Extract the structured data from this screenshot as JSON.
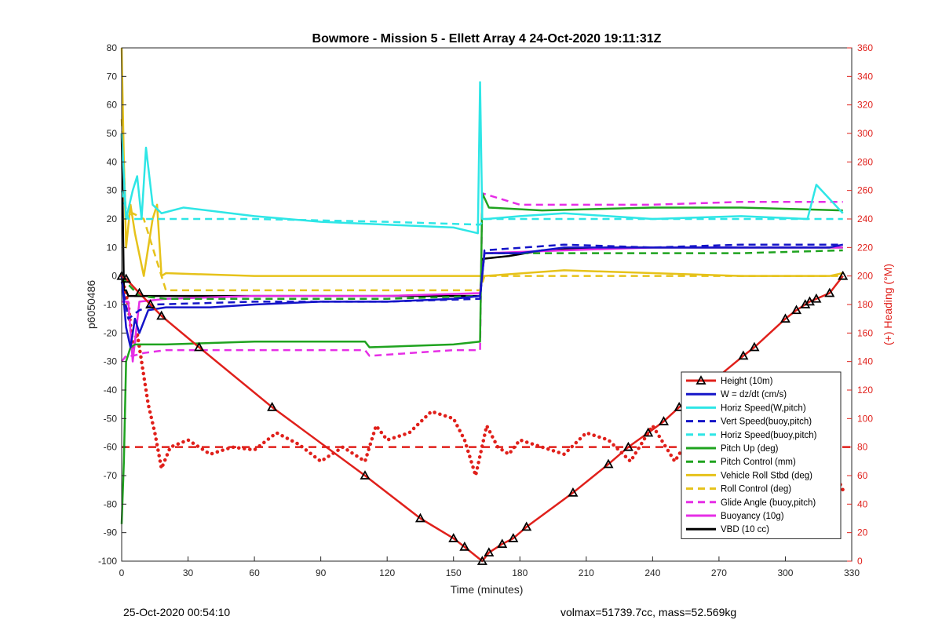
{
  "chart_data": {
    "type": "line",
    "title": "Bowmore - Mission 5 - Ellett Array 4 24-Oct-2020 19:11:31Z",
    "xlabel": "Time (minutes)",
    "ylabel": "p6050486",
    "y2label": "(+) Heading (°M)",
    "xlim": [
      0,
      330
    ],
    "ylim": [
      -100,
      80
    ],
    "y2lim": [
      0,
      360
    ],
    "xticks": [
      "0",
      "30",
      "60",
      "90",
      "120",
      "150",
      "180",
      "210",
      "240",
      "270",
      "300",
      "330"
    ],
    "yticks": [
      "-100",
      "-90",
      "-80",
      "-70",
      "-60",
      "-50",
      "-40",
      "-30",
      "-20",
      "-10",
      "0",
      "10",
      "20",
      "30",
      "40",
      "50",
      "60",
      "70",
      "80"
    ],
    "y2ticks": [
      "0",
      "20",
      "40",
      "60",
      "80",
      "100",
      "120",
      "140",
      "160",
      "180",
      "200",
      "220",
      "240",
      "260",
      "280",
      "300",
      "320",
      "340",
      "360"
    ],
    "grid": false,
    "legend_position": "bottom-right",
    "colors": {
      "red": "#e0201b",
      "blue": "#1414c8",
      "cyan": "#2ee6e6",
      "green": "#1fa31f",
      "yellow": "#e6c21a",
      "magenta": "#e62ee6",
      "black": "#000000"
    },
    "series": [
      {
        "name": "Height (10m)",
        "color": "#e0201b",
        "style": "solid",
        "marker": "triangle",
        "x": [
          0,
          2,
          8,
          13,
          18,
          35,
          68,
          110,
          135,
          150,
          155,
          163,
          166,
          172,
          177,
          183,
          204,
          220,
          229,
          238,
          245,
          252,
          260,
          267,
          281,
          286,
          300,
          305,
          309,
          311,
          314,
          320,
          326
        ],
        "y": [
          0,
          -1,
          -6,
          -10,
          -14,
          -25,
          -46,
          -70,
          -85,
          -92,
          -95,
          -100,
          -97,
          -94,
          -92,
          -88,
          -76,
          -66,
          -60,
          -55,
          -51,
          -46,
          -41,
          -37,
          -28,
          -25,
          -15,
          -12,
          -10,
          -9,
          -8,
          -6,
          0
        ]
      },
      {
        "name": "W = dz/dt (cm/s)",
        "color": "#1414c8",
        "style": "solid",
        "x": [
          0,
          2,
          4,
          6,
          8,
          12,
          20,
          40,
          60,
          90,
          120,
          150,
          162,
          164,
          180,
          200,
          240,
          280,
          320,
          326
        ],
        "y": [
          0,
          -18,
          -25,
          -15,
          -20,
          -12,
          -11,
          -11,
          -10,
          -9,
          -9,
          -8,
          -7,
          8,
          8,
          10,
          10,
          10,
          10,
          11
        ]
      },
      {
        "name": "Horiz Speed(W,pitch)",
        "color": "#2ee6e6",
        "style": "solid",
        "x": [
          0,
          2,
          5,
          7,
          9,
          11,
          14,
          18,
          28,
          60,
          90,
          120,
          150,
          161,
          162,
          163,
          165,
          180,
          200,
          240,
          280,
          310,
          314,
          326
        ],
        "y": [
          50,
          20,
          30,
          35,
          20,
          45,
          25,
          22,
          24,
          21,
          19,
          18,
          17,
          15,
          68,
          20,
          20,
          21,
          22,
          20,
          21,
          20,
          32,
          22
        ]
      },
      {
        "name": "Vert Speed(buoy,pitch)",
        "color": "#1414c8",
        "style": "dashed",
        "x": [
          0,
          3,
          8,
          15,
          60,
          120,
          162,
          164,
          200,
          240,
          280,
          326
        ],
        "y": [
          -2,
          -15,
          -12,
          -10,
          -9,
          -9,
          -8,
          9,
          11,
          10,
          11,
          11
        ]
      },
      {
        "name": "Horiz Speed(buoy,pitch)",
        "color": "#2ee6e6",
        "style": "dashed",
        "x": [
          0,
          3,
          10,
          20,
          60,
          120,
          162,
          164,
          200,
          240,
          280,
          326
        ],
        "y": [
          30,
          20,
          20,
          20,
          20,
          19,
          18,
          20,
          20,
          20,
          20,
          20
        ]
      },
      {
        "name": "Pitch Up (deg)",
        "color": "#1fa31f",
        "style": "solid",
        "x": [
          0,
          1,
          2,
          4,
          6,
          10,
          20,
          60,
          110,
          112,
          150,
          162,
          163,
          166,
          190,
          240,
          280,
          326
        ],
        "y": [
          -87,
          -65,
          -30,
          -25,
          -24,
          -24,
          -24,
          -23,
          -23,
          -25,
          -24,
          -23,
          29,
          24,
          23,
          24,
          24,
          23
        ]
      },
      {
        "name": "Pitch Control (mm)",
        "color": "#1fa31f",
        "style": "dashed",
        "x": [
          0,
          3,
          8,
          20,
          60,
          120,
          162,
          164,
          200,
          240,
          280,
          326
        ],
        "y": [
          0,
          -3,
          -7,
          -8,
          -8,
          -8,
          -7,
          8,
          8,
          8,
          8,
          9
        ]
      },
      {
        "name": "Vehicle Roll Stbd (deg)",
        "color": "#e6c21a",
        "style": "solid",
        "x": [
          0,
          1,
          2,
          4,
          6,
          10,
          14,
          16,
          18,
          20,
          60,
          120,
          160,
          162,
          164,
          200,
          240,
          280,
          320,
          326
        ],
        "y": [
          80,
          40,
          10,
          25,
          15,
          0,
          20,
          25,
          0,
          1,
          0,
          0,
          0,
          0,
          0,
          2,
          1,
          0,
          0,
          1
        ]
      },
      {
        "name": "Roll Control (deg)",
        "color": "#e6c21a",
        "style": "dashed",
        "x": [
          0,
          2,
          5,
          10,
          20,
          60,
          120,
          162,
          164,
          200,
          240,
          280,
          326
        ],
        "y": [
          55,
          20,
          22,
          20,
          -5,
          -5,
          -5,
          -5,
          0,
          0,
          0,
          0,
          0
        ]
      },
      {
        "name": "Glide Angle (buoy,pitch)",
        "color": "#e62ee6",
        "style": "dashed",
        "x": [
          0,
          2,
          5,
          10,
          20,
          60,
          110,
          112,
          150,
          162,
          163,
          180,
          240,
          280,
          326
        ],
        "y": [
          -30,
          -28,
          -28,
          -27,
          -26,
          -26,
          -26,
          -28,
          -26,
          -26,
          29,
          25,
          25,
          26,
          26
        ]
      },
      {
        "name": "Buoyancy (10g)",
        "color": "#e62ee6",
        "style": "solid",
        "x": [
          0,
          3,
          5,
          8,
          20,
          60,
          120,
          162,
          164,
          200,
          240,
          280,
          326
        ],
        "y": [
          -9,
          -9,
          -30,
          -9,
          -8,
          -7,
          -7,
          -6,
          8,
          9,
          10,
          10,
          10
        ]
      },
      {
        "name": "VBD (10 cc)",
        "color": "#000000",
        "style": "solid",
        "x": [
          0,
          1,
          2,
          3,
          20,
          60,
          120,
          162,
          163,
          175,
          190,
          220,
          260,
          300,
          326
        ],
        "y": [
          50,
          -5,
          -5,
          -7,
          -7,
          -7,
          -7,
          -7,
          6,
          7,
          9,
          10,
          10,
          10,
          10
        ]
      }
    ],
    "heading_series": {
      "color": "#e0201b",
      "style": "dotted",
      "axis": "right",
      "x": [
        0,
        3,
        5,
        7,
        10,
        12,
        15,
        18,
        22,
        30,
        40,
        50,
        60,
        70,
        80,
        90,
        100,
        110,
        115,
        120,
        130,
        140,
        150,
        155,
        160,
        165,
        170,
        175,
        180,
        190,
        200,
        210,
        220,
        230,
        240,
        250,
        260,
        270,
        280,
        290,
        300,
        305,
        310,
        315,
        320,
        326
      ],
      "y": [
        200,
        180,
        150,
        160,
        130,
        110,
        90,
        65,
        80,
        85,
        75,
        80,
        78,
        90,
        82,
        70,
        80,
        70,
        95,
        85,
        90,
        105,
        100,
        85,
        60,
        95,
        80,
        75,
        85,
        80,
        75,
        90,
        85,
        70,
        95,
        70,
        95,
        80,
        85,
        90,
        95,
        110,
        125,
        80,
        70,
        50
      ]
    },
    "heading_reference": {
      "color": "#e0201b",
      "style": "dashed",
      "value": 80,
      "axis": "right"
    }
  },
  "footer": {
    "timestamp": "25-Oct-2020 00:54:10",
    "info": "volmax=51739.7cc, mass=52.569kg"
  }
}
